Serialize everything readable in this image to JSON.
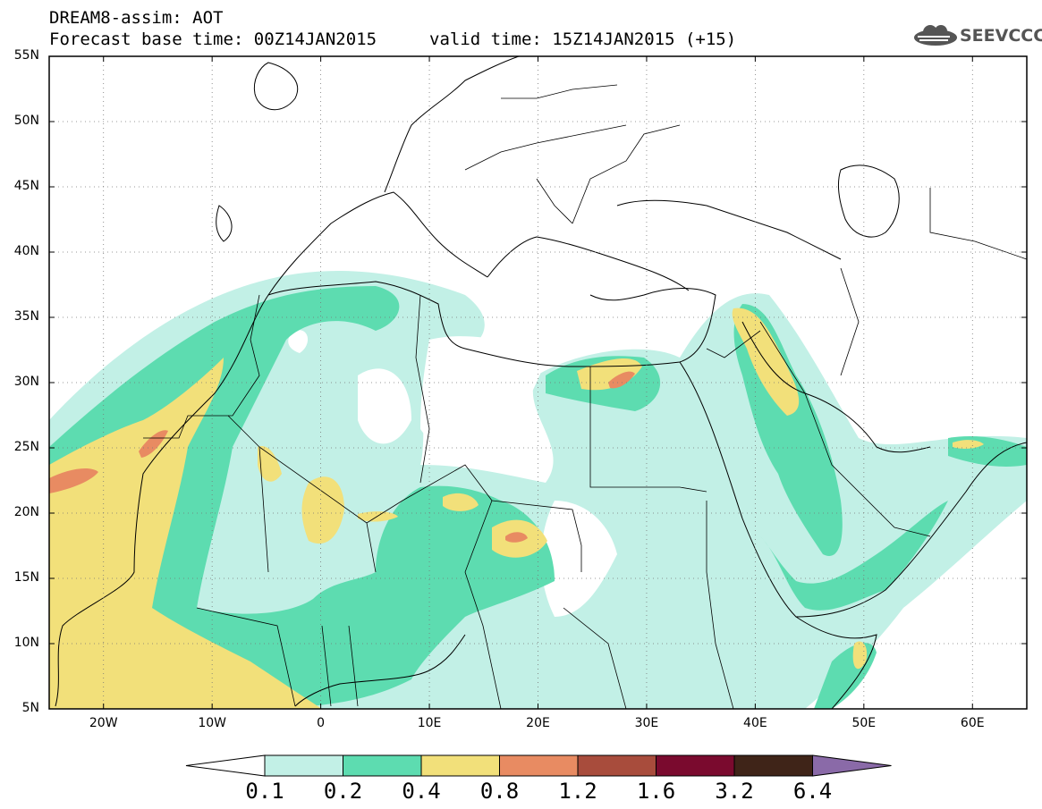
{
  "header": {
    "model_line": "DREAM8-assim: AOT",
    "base_time": "Forecast base time: 00Z14JAN2015",
    "valid_time": "valid time: 15Z14JAN2015 (+15)"
  },
  "logo": {
    "text": "SEEVCCC",
    "icon": "cloud-logo-icon"
  },
  "map": {
    "lon_range": [
      -25,
      65
    ],
    "lat_range": [
      5,
      55
    ],
    "lat_ticks": [
      {
        "value": 55,
        "label": "55N"
      },
      {
        "value": 50,
        "label": "50N"
      },
      {
        "value": 45,
        "label": "45N"
      },
      {
        "value": 40,
        "label": "40N"
      },
      {
        "value": 35,
        "label": "35N"
      },
      {
        "value": 30,
        "label": "30N"
      },
      {
        "value": 25,
        "label": "25N"
      },
      {
        "value": 20,
        "label": "20N"
      },
      {
        "value": 15,
        "label": "15N"
      },
      {
        "value": 10,
        "label": "10N"
      },
      {
        "value": 5,
        "label": "5N"
      }
    ],
    "lon_ticks": [
      {
        "value": -20,
        "label": "20W"
      },
      {
        "value": -10,
        "label": "10W"
      },
      {
        "value": 0,
        "label": "0"
      },
      {
        "value": 10,
        "label": "10E"
      },
      {
        "value": 20,
        "label": "20E"
      },
      {
        "value": 30,
        "label": "30E"
      },
      {
        "value": 40,
        "label": "40E"
      },
      {
        "value": 50,
        "label": "50E"
      },
      {
        "value": 60,
        "label": "60E"
      }
    ],
    "grid": "dotted"
  },
  "colorbar": {
    "levels": [
      "0.1",
      "0.2",
      "0.4",
      "0.8",
      "1.2",
      "1.6",
      "3.2",
      "6.4"
    ],
    "colors": [
      "#ffffff",
      "#c2f0e6",
      "#5ddcb0",
      "#f2e07a",
      "#e88b62",
      "#a84c3c",
      "#7a0a2e",
      "#3f2418",
      "#8a6aa8"
    ]
  }
}
